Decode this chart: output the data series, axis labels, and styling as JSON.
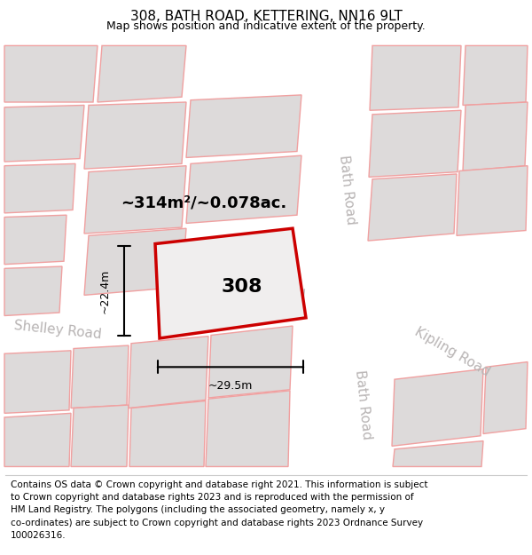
{
  "title": "308, BATH ROAD, KETTERING, NN16 9LT",
  "subtitle": "Map shows position and indicative extent of the property.",
  "footer": "Contains OS data © Crown copyright and database right 2021. This information is subject\nto Crown copyright and database rights 2023 and is reproduced with the permission of\nHM Land Registry. The polygons (including the associated geometry, namely x, y\nco-ordinates) are subject to Crown copyright and database rights 2023 Ordnance Survey\n100026316.",
  "map_bg": "#eeecec",
  "building_fill": "#dddada",
  "building_stroke": "#f0a0a0",
  "highlight_fill": "#f0eeee",
  "highlight_stroke": "#cc0000",
  "road_label_color": "#b8b4b4",
  "label_308": "308",
  "area_label": "~314m²/~0.078ac.",
  "dim_width": "~29.5m",
  "dim_height": "~22.4m",
  "title_fontsize": 11,
  "subtitle_fontsize": 9,
  "footer_fontsize": 7.5,
  "road_label_fontsize": 11,
  "area_fontsize": 13,
  "label_fontsize": 16,
  "dim_fontsize": 9
}
